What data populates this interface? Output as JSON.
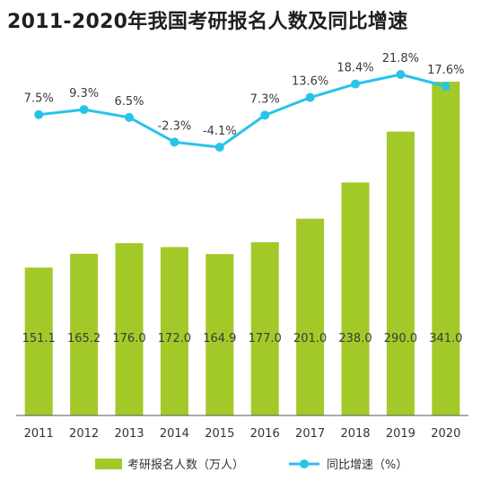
{
  "title": "2011-2020年我国考研报名人数及同比增速",
  "chart_data": {
    "type": "bar",
    "categories": [
      "2011",
      "2012",
      "2013",
      "2014",
      "2015",
      "2016",
      "2017",
      "2018",
      "2019",
      "2020"
    ],
    "series": [
      {
        "name": "考研报名人数（万人）",
        "type": "bar",
        "axis": "left",
        "values": [
          151.1,
          165.2,
          176.0,
          172.0,
          164.9,
          177.0,
          201.0,
          238.0,
          290.0,
          341.0
        ],
        "labels": [
          "151.1",
          "165.2",
          "176.0",
          "172.0",
          "164.9",
          "177.0",
          "201.0",
          "238.0",
          "290.0",
          "341.0"
        ],
        "color": "#a3c929"
      },
      {
        "name": "同比增速（%）",
        "type": "line",
        "axis": "right",
        "values": [
          7.5,
          9.3,
          6.5,
          -2.3,
          -4.1,
          7.3,
          13.6,
          18.4,
          21.8,
          17.6
        ],
        "labels": [
          "7.5%",
          "9.3%",
          "6.5%",
          "-2.3%",
          "-4.1%",
          "7.3%",
          "13.6%",
          "18.4%",
          "21.8%",
          "17.6%"
        ],
        "color": "#29c3e8"
      }
    ],
    "ylim_bar": [
      0,
      360
    ],
    "ylim_line": [
      -15,
      28
    ],
    "grid": false,
    "legend_position": "bottom"
  }
}
